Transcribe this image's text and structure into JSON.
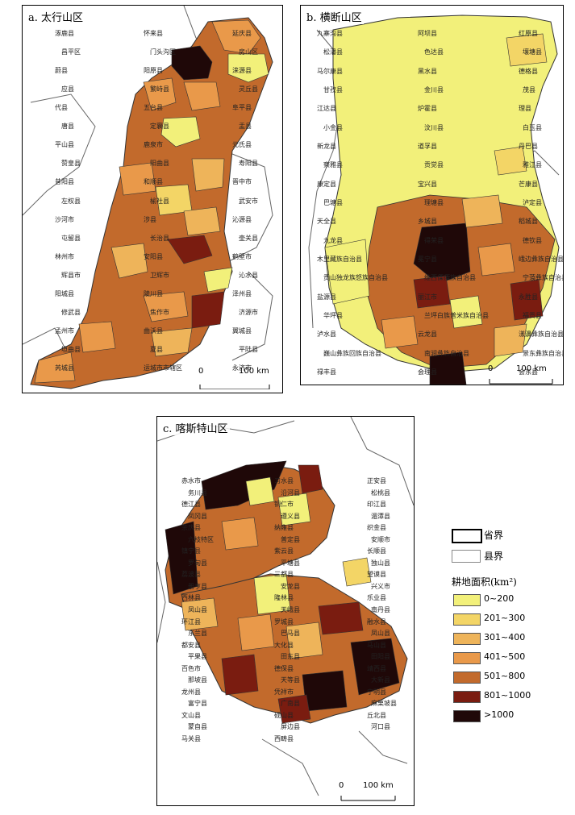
{
  "panels": {
    "a": {
      "title": "a. 太行山区",
      "scale": {
        "zero": "0",
        "distance": "100 km"
      },
      "counties": [
        "涿鹿县",
        "怀来县",
        "延庆县",
        "昌平区",
        "门头沟区",
        "房山区",
        "蔚县",
        "阳原县",
        "涞源县",
        "应县",
        "繁峙县",
        "灵丘县",
        "代县",
        "五台县",
        "阜平县",
        "唐县",
        "定襄县",
        "盂县",
        "平山县",
        "鹿泉市",
        "元氏县",
        "赞皇县",
        "阳曲县",
        "寿阳县",
        "昔阳县",
        "和顺县",
        "晋中市",
        "左权县",
        "榆社县",
        "武安市",
        "沙河市",
        "涉县",
        "沁源县",
        "屯留县",
        "长治县",
        "壶关县",
        "林州市",
        "安阳县",
        "鹤壁市",
        "辉县市",
        "卫辉市",
        "沁水县",
        "阳城县",
        "陵川县",
        "泽州县",
        "修武县",
        "焦作市",
        "济源市",
        "孟州市",
        "曲沃县",
        "翼城县",
        "垣曲县",
        "夏县",
        "平陆县",
        "芮城县",
        "运城市市辖区",
        "永济市"
      ]
    },
    "b": {
      "title": "b. 横断山区",
      "scale": {
        "zero": "0",
        "distance": "100 km"
      },
      "counties": [
        "九寨沟县",
        "阿坝县",
        "红原县",
        "松潘县",
        "色达县",
        "壤塘县",
        "马尔康县",
        "黑水县",
        "德格县",
        "甘孜县",
        "金川县",
        "茂县",
        "江达县",
        "炉霍县",
        "理县",
        "小金县",
        "汶川县",
        "白玉县",
        "新龙县",
        "道孚县",
        "丹巴县",
        "察雅县",
        "贡觉县",
        "雅江县",
        "康定县",
        "宝兴县",
        "芒康县",
        "巴塘县",
        "理塘县",
        "泸定县",
        "天全县",
        "乡城县",
        "稻城县",
        "九龙县",
        "得荣县",
        "德钦县",
        "木里藏族自治县",
        "冕宁县",
        "峨边彝族自治县",
        "贡山独龙族怒族自治县",
        "维西傈僳族自治县",
        "宁蒗彝族自治县",
        "盐源县",
        "丽江市",
        "永胜县",
        "华坪县",
        "兰坪白族普米族自治县",
        "福贡县",
        "泸水县",
        "云龙县",
        "漾濞彝族自治县",
        "巍山彝族回族自治县",
        "南涧彝族自治县",
        "景东彝族自治县",
        "禄丰县",
        "会理县",
        "会东县"
      ]
    },
    "c": {
      "title": "c. 喀斯特山区",
      "scale": {
        "zero": "0",
        "distance": "100 km"
      },
      "counties": [
        "赤水市",
        "习水县",
        "正安县",
        "务川县",
        "沿河县",
        "松桃县",
        "德江县",
        "铜仁市",
        "印江县",
        "凤冈县",
        "遵义县",
        "湄潭县",
        "余庆县",
        "纳雍县",
        "织金县",
        "六枝特区",
        "普定县",
        "安顺市",
        "镇宁县",
        "紫云县",
        "长顺县",
        "罗甸县",
        "平塘县",
        "独山县",
        "荔波县",
        "三都县",
        "望谟县",
        "册亨县",
        "安龙县",
        "兴义市",
        "西林县",
        "隆林县",
        "乐业县",
        "凤山县",
        "天峨县",
        "南丹县",
        "环江县",
        "罗城县",
        "融水县",
        "东兰县",
        "巴马县",
        "凤山县",
        "都安县",
        "大化县",
        "马山县",
        "平果县",
        "田东县",
        "田阳县",
        "百色市",
        "德保县",
        "靖西县",
        "那坡县",
        "天等县",
        "大新县",
        "龙州县",
        "凭祥市",
        "宁明县",
        "富宁县",
        "广南县",
        "麻栗坡县",
        "文山县",
        "砚山县",
        "丘北县",
        "蒙自县",
        "屏边县",
        "河口县",
        "马关县",
        "西畴县"
      ]
    }
  },
  "legend": {
    "province_boundary": "省界",
    "county_boundary": "县界",
    "title": "耕地面积(km²)",
    "classes": [
      {
        "label": "0~200",
        "color": "#f2f07a"
      },
      {
        "label": "201~300",
        "color": "#f3d566"
      },
      {
        "label": "301~400",
        "color": "#eeb45a"
      },
      {
        "label": "401~500",
        "color": "#e9994a"
      },
      {
        "label": "501~800",
        "color": "#c26a2c"
      },
      {
        "label": "801~1000",
        "color": "#7a1c10"
      },
      {
        "label": ">1000",
        "color": "#1f0808"
      }
    ]
  }
}
